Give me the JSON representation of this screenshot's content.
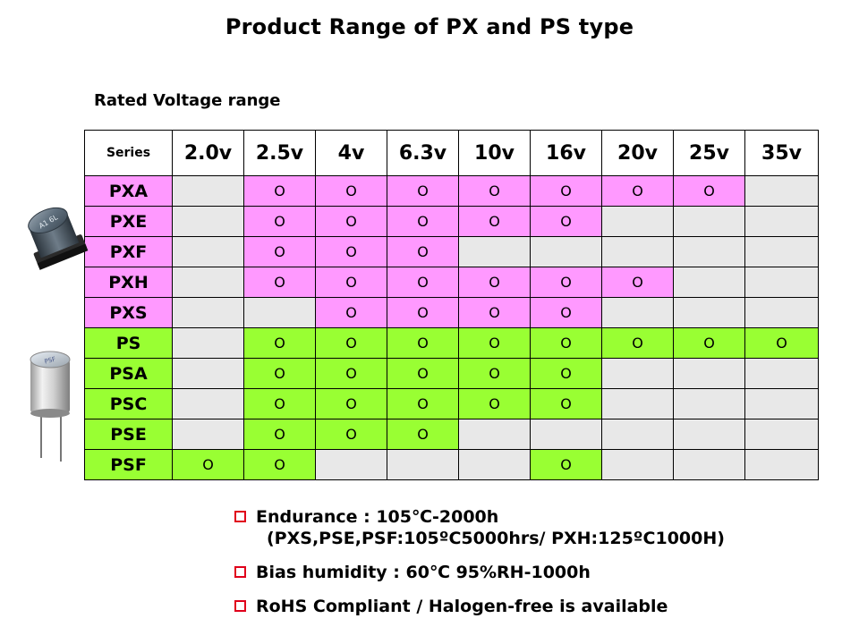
{
  "title": "Product Range of PX and PS type",
  "subtitle": "Rated Voltage range",
  "table": {
    "series_header": "Series",
    "voltages": [
      "2.0v",
      "2.5v",
      "4v",
      "6.3v",
      "10v",
      "16v",
      "20v",
      "25v",
      "35v"
    ],
    "rows": [
      {
        "name": "PXA",
        "group": "px",
        "cells": [
          "",
          "O",
          "O",
          "O",
          "O",
          "O",
          "O",
          "O",
          ""
        ]
      },
      {
        "name": "PXE",
        "group": "px",
        "cells": [
          "",
          "O",
          "O",
          "O",
          "O",
          "O",
          "",
          "",
          ""
        ]
      },
      {
        "name": "PXF",
        "group": "px",
        "cells": [
          "",
          "O",
          "O",
          "O",
          "",
          "",
          "",
          "",
          ""
        ]
      },
      {
        "name": "PXH",
        "group": "px",
        "cells": [
          "",
          "O",
          "O",
          "O",
          "O",
          "O",
          "O",
          "",
          ""
        ]
      },
      {
        "name": "PXS",
        "group": "px",
        "cells": [
          "",
          "",
          "O",
          "O",
          "O",
          "O",
          "",
          "",
          ""
        ]
      },
      {
        "name": "PS",
        "group": "ps",
        "cells": [
          "",
          "O",
          "O",
          "O",
          "O",
          "O",
          "O",
          "O",
          "O"
        ]
      },
      {
        "name": "PSA",
        "group": "ps",
        "cells": [
          "",
          "O",
          "O",
          "O",
          "O",
          "O",
          "",
          "",
          ""
        ]
      },
      {
        "name": "PSC",
        "group": "ps",
        "cells": [
          "",
          "O",
          "O",
          "O",
          "O",
          "O",
          "",
          "",
          ""
        ]
      },
      {
        "name": "PSE",
        "group": "ps",
        "cells": [
          "",
          "O",
          "O",
          "O",
          "",
          "",
          "",
          "",
          ""
        ]
      },
      {
        "name": "PSF",
        "group": "ps",
        "cells": [
          "O",
          "O",
          "",
          "",
          "",
          "O",
          "",
          "",
          ""
        ]
      }
    ]
  },
  "colors": {
    "px_fill": "#ff99ff",
    "ps_fill": "#99ff33",
    "empty_fill": "#e8e8e8",
    "bullet_accent": "#e0001b"
  },
  "images": {
    "px_capacitor": {
      "icon": "smd-capacitor-icon",
      "marking": "A1 6L 150 4V"
    },
    "ps_capacitor": {
      "icon": "radial-capacitor-icon",
      "marking": "PSF 820"
    }
  },
  "bullets": {
    "endurance": "Endurance : 105℃-2000h",
    "endurance_note": "(PXS,PSE,PSF:105ºC5000hrs/  PXH:125ºC1000H)",
    "bias_humidity": "Bias humidity : 60℃ 95%RH-1000h",
    "rohs": "RoHS Compliant  / Halogen-free is available"
  }
}
